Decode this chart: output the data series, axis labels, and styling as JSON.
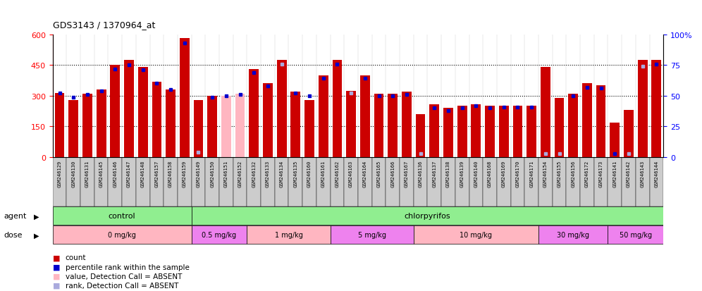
{
  "title": "GDS3143 / 1370964_at",
  "samples": [
    "GSM246129",
    "GSM246130",
    "GSM246131",
    "GSM246145",
    "GSM246146",
    "GSM246147",
    "GSM246148",
    "GSM246157",
    "GSM246158",
    "GSM246159",
    "GSM246149",
    "GSM246150",
    "GSM246151",
    "GSM246152",
    "GSM246132",
    "GSM246133",
    "GSM246134",
    "GSM246135",
    "GSM246160",
    "GSM246161",
    "GSM246162",
    "GSM246163",
    "GSM246164",
    "GSM246165",
    "GSM246166",
    "GSM246167",
    "GSM246136",
    "GSM246137",
    "GSM246138",
    "GSM246139",
    "GSM246140",
    "GSM246168",
    "GSM246169",
    "GSM246170",
    "GSM246171",
    "GSM246154",
    "GSM246155",
    "GSM246156",
    "GSM246172",
    "GSM246173",
    "GSM246141",
    "GSM246142",
    "GSM246143",
    "GSM246144"
  ],
  "counts": [
    315,
    280,
    310,
    330,
    450,
    475,
    440,
    370,
    330,
    580,
    280,
    300,
    300,
    310,
    430,
    360,
    475,
    320,
    280,
    400,
    475,
    325,
    400,
    310,
    310,
    320,
    210,
    260,
    240,
    250,
    260,
    250,
    250,
    250,
    250,
    440,
    290,
    310,
    360,
    350,
    170,
    230,
    475,
    475
  ],
  "ranks": [
    52,
    49,
    51,
    54,
    72,
    75,
    71,
    60,
    55,
    93,
    4,
    49,
    50,
    51,
    69,
    58,
    76,
    52,
    50,
    64,
    76,
    52,
    64,
    50,
    50,
    51,
    3,
    40,
    38,
    40,
    42,
    40,
    41,
    41,
    41,
    3,
    3,
    50,
    57,
    56,
    3,
    3,
    74,
    76
  ],
  "absent_count": [
    false,
    false,
    false,
    false,
    false,
    false,
    false,
    false,
    false,
    false,
    false,
    false,
    true,
    true,
    false,
    false,
    false,
    false,
    false,
    false,
    false,
    false,
    false,
    false,
    false,
    false,
    false,
    false,
    false,
    false,
    false,
    false,
    false,
    false,
    false,
    false,
    false,
    false,
    false,
    false,
    false,
    false,
    false,
    false
  ],
  "absent_rank": [
    false,
    false,
    false,
    false,
    false,
    false,
    false,
    false,
    false,
    false,
    true,
    false,
    false,
    false,
    false,
    false,
    true,
    false,
    false,
    false,
    false,
    true,
    false,
    false,
    false,
    false,
    true,
    false,
    false,
    false,
    false,
    false,
    false,
    false,
    false,
    true,
    true,
    false,
    false,
    false,
    false,
    true,
    true,
    false
  ],
  "agent_defs": [
    {
      "label": "control",
      "start": 0,
      "end": 10,
      "color": "#90EE90"
    },
    {
      "label": "chlorpyrifos",
      "start": 10,
      "end": 44,
      "color": "#90EE90"
    }
  ],
  "dose_groups": [
    {
      "label": "0 mg/kg",
      "start": 0,
      "end": 10,
      "color": "#FFB6C1"
    },
    {
      "label": "0.5 mg/kg",
      "start": 10,
      "end": 14,
      "color": "#EE82EE"
    },
    {
      "label": "1 mg/kg",
      "start": 14,
      "end": 20,
      "color": "#FFB6C1"
    },
    {
      "label": "5 mg/kg",
      "start": 20,
      "end": 26,
      "color": "#EE82EE"
    },
    {
      "label": "10 mg/kg",
      "start": 26,
      "end": 35,
      "color": "#FFB6C1"
    },
    {
      "label": "30 mg/kg",
      "start": 35,
      "end": 40,
      "color": "#EE82EE"
    },
    {
      "label": "50 mg/kg",
      "start": 40,
      "end": 44,
      "color": "#EE82EE"
    }
  ],
  "ylim_left": [
    0,
    600
  ],
  "ylim_right": [
    0,
    100
  ],
  "yticks_left": [
    0,
    150,
    300,
    450,
    600
  ],
  "yticks_right": [
    0,
    25,
    50,
    75,
    100
  ],
  "bar_color": "#CC0000",
  "absent_bar_color": "#FFB6C1",
  "rank_color": "#0000CC",
  "absent_rank_color": "#AAAADD",
  "bg_color": "#FFFFFF",
  "plot_bg": "#FFFFFF",
  "label_bg": "#CCCCCC"
}
